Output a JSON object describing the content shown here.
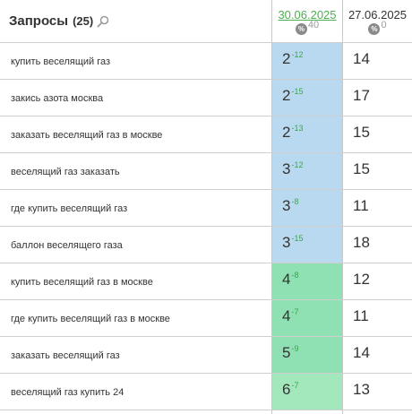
{
  "header": {
    "title": "Запросы",
    "count": "(25)",
    "search_icon": "search-icon"
  },
  "dates": [
    {
      "label": "30.06.2025",
      "percent": "40"
    },
    {
      "label": "27.06.2025",
      "percent": "0"
    }
  ],
  "colors": {
    "blue_cell": "#b9d9f0",
    "green_cell": "#8fe0b3",
    "green_cell_light": "#a3e8bd",
    "delta_green": "#3aa74a"
  },
  "rows": [
    {
      "query": "купить веселящий газ",
      "position": "2",
      "delta": "-12",
      "prev": "14",
      "tier": "blue"
    },
    {
      "query": "закись азота москва",
      "position": "2",
      "delta": "-15",
      "prev": "17",
      "tier": "blue"
    },
    {
      "query": "заказать веселящий газ в москве",
      "position": "2",
      "delta": "-13",
      "prev": "15",
      "tier": "blue"
    },
    {
      "query": "веселящий газ заказать",
      "position": "3",
      "delta": "-12",
      "prev": "15",
      "tier": "blue"
    },
    {
      "query": "где купить веселящий газ",
      "position": "3",
      "delta": "-8",
      "prev": "11",
      "tier": "blue"
    },
    {
      "query": "баллон веселящего газа",
      "position": "3",
      "delta": "-15",
      "prev": "18",
      "tier": "blue"
    },
    {
      "query": "купить веселящий газ в москве",
      "position": "4",
      "delta": "-8",
      "prev": "12",
      "tier": "green"
    },
    {
      "query": "где купить веселящий газ в москве",
      "position": "4",
      "delta": "-7",
      "prev": "11",
      "tier": "green"
    },
    {
      "query": "заказать веселящий газ",
      "position": "5",
      "delta": "-9",
      "prev": "14",
      "tier": "green"
    },
    {
      "query": "веселящий газ купить 24",
      "position": "6",
      "delta": "-7",
      "prev": "13",
      "tier": "green-light"
    }
  ]
}
